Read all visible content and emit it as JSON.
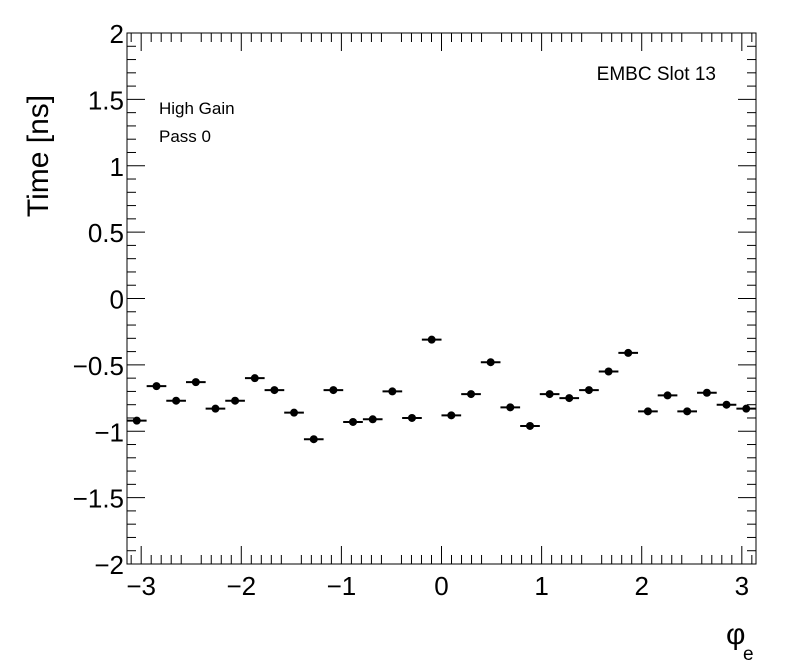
{
  "chart_data": {
    "type": "scatter",
    "title": "",
    "xlabel": "φ",
    "xlabel_sub": "e",
    "ylabel": "Time [ns]",
    "xlim": [
      -3.1416,
      3.1416
    ],
    "ylim": [
      -2,
      2
    ],
    "x_ticks": [
      -3,
      -2,
      -1,
      0,
      1,
      2,
      3
    ],
    "x_tick_labels": [
      "−3",
      "−2",
      "−1",
      "0",
      "1",
      "2",
      "3"
    ],
    "y_ticks": [
      -2,
      -1.5,
      -1,
      -0.5,
      0,
      0.5,
      1,
      1.5,
      2
    ],
    "y_tick_labels": [
      "−2",
      "−1.5",
      "−1",
      "−0.5",
      "0",
      "0.5",
      "1",
      "1.5",
      "2"
    ],
    "grid": false,
    "annotations": {
      "gain": "High Gain",
      "pass": "Pass 0",
      "slot": "EMBC Slot 13"
    },
    "bin_half_width": 0.0982,
    "series": [
      {
        "x": [
          -3.044,
          -2.847,
          -2.651,
          -2.454,
          -2.258,
          -2.062,
          -1.865,
          -1.669,
          -1.473,
          -1.276,
          -1.08,
          -0.884,
          -0.687,
          -0.491,
          -0.295,
          -0.098,
          0.098,
          0.295,
          0.491,
          0.687,
          0.884,
          1.08,
          1.276,
          1.473,
          1.669,
          1.865,
          2.062,
          2.258,
          2.454,
          2.651,
          2.847,
          3.044
        ],
        "y": [
          -0.92,
          -0.66,
          -0.77,
          -0.63,
          -0.83,
          -0.77,
          -0.6,
          -0.69,
          -0.86,
          -1.06,
          -0.69,
          -0.93,
          -0.91,
          -0.7,
          -0.9,
          -0.31,
          -0.88,
          -0.72,
          -0.48,
          -0.82,
          -0.96,
          -0.72,
          -0.75,
          -0.69,
          -0.55,
          -0.41,
          -0.85,
          -0.73,
          -0.85,
          -0.71,
          -0.8,
          -0.83
        ]
      }
    ]
  }
}
